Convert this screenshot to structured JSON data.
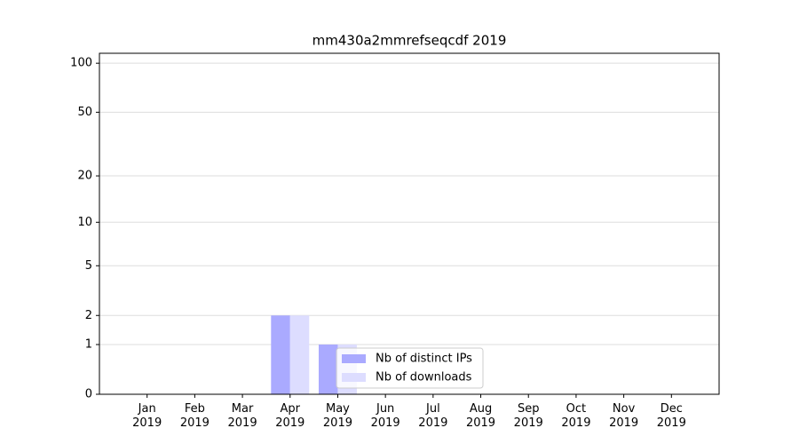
{
  "chart_data": {
    "type": "bar",
    "title": "mm430a2mmrefseqcdf 2019",
    "categories": [
      "Jan\n2019",
      "Feb\n2019",
      "Mar\n2019",
      "Apr\n2019",
      "May\n2019",
      "Jun\n2019",
      "Jul\n2019",
      "Aug\n2019",
      "Sep\n2019",
      "Oct\n2019",
      "Nov\n2019",
      "Dec\n2019"
    ],
    "series": [
      {
        "name": "Nb of distinct IPs",
        "color": "#aaaaff",
        "values": [
          0,
          0,
          0,
          2,
          1,
          0,
          0,
          0,
          0,
          0,
          0,
          0
        ]
      },
      {
        "name": "Nb of downloads",
        "color": "#ddddff",
        "values": [
          0,
          0,
          0,
          2,
          1,
          0,
          0,
          0,
          0,
          0,
          0,
          0
        ]
      }
    ],
    "yscale": "log1p",
    "ylim": [
      0,
      115
    ],
    "yticks": [
      0,
      1,
      2,
      5,
      10,
      20,
      50,
      100
    ],
    "grid": true,
    "legend": "lower center"
  }
}
